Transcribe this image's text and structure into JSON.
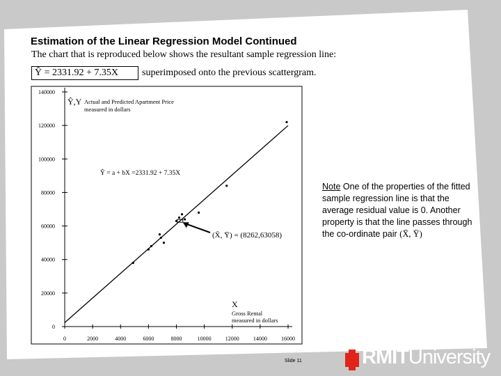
{
  "slide": {
    "title": "Estimation of the Linear Regression Model Continued",
    "subtitle": "The chart that is reproduced below shows the resultant sample regression line:",
    "equation": "Ŷ =  2331.92  +  7.35X",
    "equation_tail": "superimposed onto the previous scattergram.",
    "note_label": "Note",
    "note_text": " One of the properties of the fitted sample regression line is that the average residual value is 0. Another property is that the line passes through the co-ordinate pair ",
    "note_pair": "(X̄, Ȳ)",
    "slide_number": "Slide 11",
    "logo_text_bold": "RMIT",
    "logo_text_regular": "University"
  },
  "chart_data": {
    "type": "scatter",
    "y_axis_title": "Ŷ,Y",
    "y_axis_label_line1": "Actual and Predicted Apartment Price",
    "y_axis_label_line2": "measured in dollars",
    "x_axis_title": "X",
    "x_axis_label_line1": "Gross Rental",
    "x_axis_label_line2": "measured in dollars",
    "line_equation_label": "Ŷ = a + bX =2331.92 + 7.35X",
    "mean_point_label": "(X̄, Ȳ) = (8262,63058)",
    "x_ticks": [
      0,
      2000,
      4000,
      6000,
      8000,
      10000,
      12000,
      14000,
      16000
    ],
    "y_ticks": [
      0,
      20000,
      40000,
      60000,
      80000,
      100000,
      120000,
      140000
    ],
    "xlim": [
      0,
      16000
    ],
    "ylim": [
      0,
      140000
    ],
    "regression": {
      "intercept": 2331.92,
      "slope": 7.35
    },
    "mean_point": {
      "x": 8262,
      "y": 63058
    },
    "points": [
      {
        "x": 4900,
        "y": 38000
      },
      {
        "x": 6000,
        "y": 46000
      },
      {
        "x": 6200,
        "y": 48000
      },
      {
        "x": 6800,
        "y": 55000
      },
      {
        "x": 6900,
        "y": 53000
      },
      {
        "x": 7100,
        "y": 50000
      },
      {
        "x": 8000,
        "y": 63000
      },
      {
        "x": 8200,
        "y": 65000
      },
      {
        "x": 8400,
        "y": 67000
      },
      {
        "x": 8600,
        "y": 64000
      },
      {
        "x": 9600,
        "y": 68000
      },
      {
        "x": 11600,
        "y": 84000
      },
      {
        "x": 15900,
        "y": 122000
      }
    ]
  }
}
